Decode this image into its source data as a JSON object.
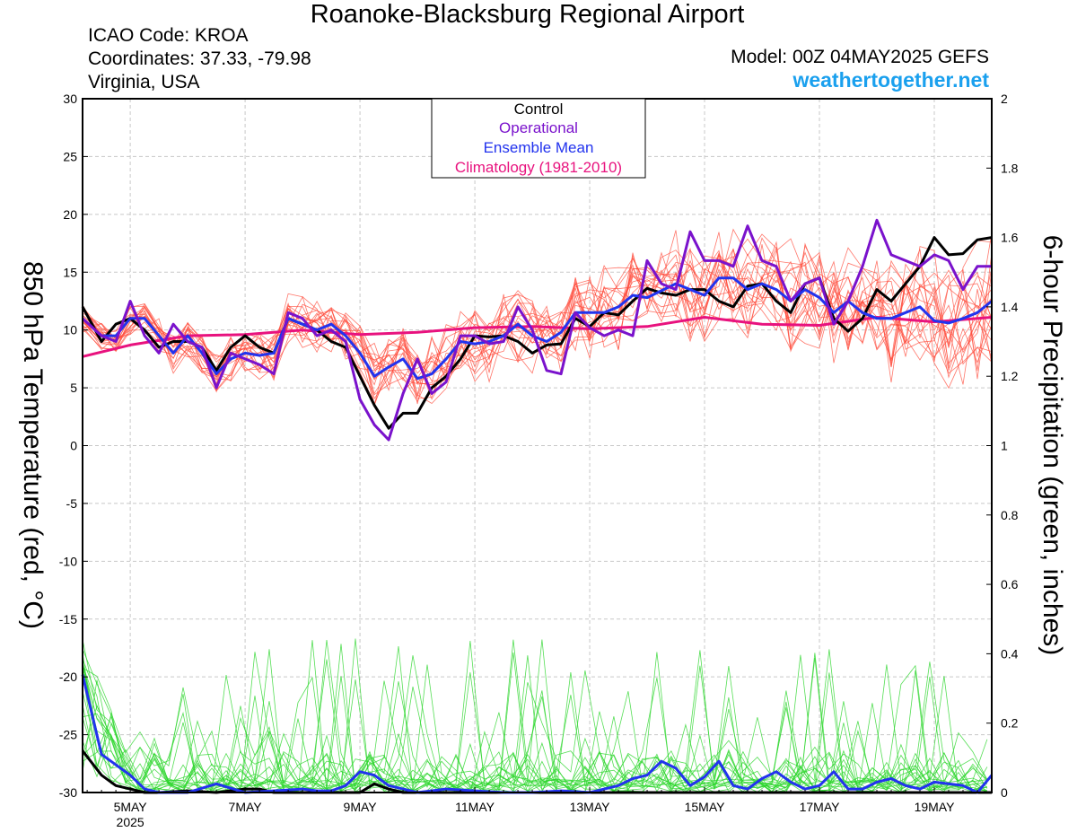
{
  "header": {
    "title": "Roanoke-Blacksburg Regional Airport",
    "icao": "ICAO Code: KROA",
    "coordinates": "Coordinates: 37.33, -79.98",
    "region": "Virginia, USA",
    "model": "Model: 00Z 04MAY2025 GEFS",
    "site": "weathertogether.net"
  },
  "colors": {
    "control": "#000000",
    "operational": "#7a12cc",
    "mean": "#2233ee",
    "climatology": "#e8127e",
    "members_temp": "#ff4a3a",
    "members_precip": "#2ad62a",
    "site": "#1aa0ee"
  },
  "chart_data": {
    "type": "line",
    "ylabel": "850 hPa Temperature (red, °C)",
    "y2label": "6-hour Precipitation (green, inches)",
    "ylim": [
      -30,
      30
    ],
    "y2lim": [
      0,
      2
    ],
    "yticks": [
      "30",
      "25",
      "20",
      "15",
      "10",
      "5",
      "0",
      "-5",
      "-10",
      "-15",
      "-20",
      "-25",
      "-30"
    ],
    "y2ticks": [
      "2",
      "1.8",
      "1.6",
      "1.4",
      "1.2",
      "1",
      "0.8",
      "0.6",
      "0.4",
      "0.2",
      "0"
    ],
    "xlim": [
      4.17,
      20.0
    ],
    "xticks": [
      {
        "pos": 5,
        "label": "5MAY",
        "sub": "2025"
      },
      {
        "pos": 7,
        "label": "7MAY",
        "sub": ""
      },
      {
        "pos": 9,
        "label": "9MAY",
        "sub": ""
      },
      {
        "pos": 11,
        "label": "11MAY",
        "sub": ""
      },
      {
        "pos": 13,
        "label": "13MAY",
        "sub": ""
      },
      {
        "pos": 15,
        "label": "15MAY",
        "sub": ""
      },
      {
        "pos": 17,
        "label": "17MAY",
        "sub": ""
      },
      {
        "pos": 19,
        "label": "19MAY",
        "sub": ""
      }
    ],
    "grid": true,
    "legend": {
      "position": "top-center",
      "entries": [
        {
          "label": "Control",
          "color": "#000000"
        },
        {
          "label": "Operational",
          "color": "#7a12cc"
        },
        {
          "label": "Ensemble Mean",
          "color": "#2233ee"
        },
        {
          "label": "Climatology (1981-2010)",
          "color": "#e8127e"
        }
      ]
    },
    "series": [
      {
        "name": "Control",
        "axis": "temp",
        "x": [
          4.17,
          4.5,
          4.75,
          5.0,
          5.25,
          5.5,
          5.75,
          6.0,
          6.25,
          6.5,
          6.75,
          7.0,
          7.25,
          7.5,
          7.75,
          8.0,
          8.25,
          8.5,
          8.75,
          9.0,
          9.25,
          9.5,
          9.75,
          10.0,
          10.25,
          10.5,
          10.75,
          11.0,
          11.25,
          11.5,
          11.75,
          12.0,
          12.25,
          12.5,
          12.75,
          13.0,
          13.25,
          13.5,
          13.75,
          14.0,
          14.25,
          14.5,
          14.75,
          15.0,
          15.25,
          15.5,
          15.75,
          16.0,
          16.25,
          16.5,
          16.75,
          17.0,
          17.25,
          17.5,
          17.75,
          18.0,
          18.25,
          18.5,
          18.75,
          19.0,
          19.25,
          19.5,
          19.75,
          20.0
        ],
        "values": [
          12,
          9,
          10.5,
          11,
          10,
          8.5,
          9,
          9,
          8.5,
          6.5,
          8.5,
          9.5,
          8.5,
          8,
          11,
          10.5,
          10,
          9,
          8.5,
          6,
          3.5,
          1.5,
          2.8,
          2.8,
          5,
          6,
          7.5,
          9.5,
          9.4,
          9.5,
          9,
          8,
          8.7,
          8.8,
          11,
          10.3,
          11.5,
          11.3,
          12.5,
          13.6,
          13.2,
          13,
          13.5,
          13.5,
          12.5,
          12,
          13.8,
          14,
          12.5,
          11.5,
          14,
          14.5,
          11,
          9.9,
          11,
          13.5,
          12.5,
          14,
          15.5,
          18,
          16.5,
          16.6,
          17.8,
          18
        ]
      },
      {
        "name": "Operational",
        "axis": "temp",
        "x": [
          4.17,
          4.5,
          4.75,
          5.0,
          5.25,
          5.5,
          5.75,
          6.0,
          6.25,
          6.5,
          6.75,
          7.0,
          7.25,
          7.5,
          7.75,
          8.0,
          8.25,
          8.5,
          8.75,
          9.0,
          9.25,
          9.5,
          9.75,
          10.0,
          10.25,
          10.5,
          10.75,
          11.0,
          11.25,
          11.5,
          11.75,
          12.0,
          12.25,
          12.5,
          12.75,
          13.0,
          13.25,
          13.5,
          13.75,
          14.0,
          14.25,
          14.5,
          14.75,
          15.0,
          15.25,
          15.5,
          15.75,
          16.0,
          16.25,
          16.5,
          16.75,
          17.0,
          17.25,
          17.5,
          17.75,
          18.0,
          18.25,
          18.5,
          18.75,
          19.0,
          19.25,
          19.5,
          19.75,
          20.0
        ],
        "values": [
          11,
          9.5,
          9,
          12.5,
          9.5,
          8,
          10.5,
          9,
          8.5,
          5,
          8,
          7.5,
          7,
          6.2,
          11.5,
          11,
          9.5,
          10,
          9,
          4,
          1.8,
          0.5,
          4.5,
          7.5,
          4.5,
          5.5,
          9.5,
          9.5,
          8.8,
          9,
          12,
          10,
          6.5,
          6.2,
          11.5,
          10.2,
          9.5,
          10,
          9.5,
          16,
          14,
          13.5,
          18.5,
          16,
          16,
          15.5,
          19,
          16,
          15.5,
          12.5,
          14,
          14.5,
          10.5,
          12.5,
          15.5,
          19.5,
          16.5,
          16,
          15.5,
          16.5,
          16,
          13.5,
          15.5,
          15.5
        ]
      },
      {
        "name": "Ensemble Mean",
        "axis": "temp",
        "x": [
          4.17,
          4.5,
          4.75,
          5.0,
          5.25,
          5.5,
          5.75,
          6.0,
          6.25,
          6.5,
          6.75,
          7.0,
          7.25,
          7.5,
          7.75,
          8.0,
          8.25,
          8.5,
          8.75,
          9.0,
          9.25,
          9.5,
          9.75,
          10.0,
          10.25,
          10.5,
          10.75,
          11.0,
          11.25,
          11.5,
          11.75,
          12.0,
          12.25,
          12.5,
          12.75,
          13.0,
          13.25,
          13.5,
          13.75,
          14.0,
          14.25,
          14.5,
          14.75,
          15.0,
          15.25,
          15.5,
          15.75,
          16.0,
          16.25,
          16.5,
          16.75,
          17.0,
          17.25,
          17.5,
          17.75,
          18.0,
          18.25,
          18.5,
          18.75,
          19.0,
          19.25,
          19.5,
          19.75,
          20.0
        ],
        "values": [
          11,
          9.5,
          9.5,
          11,
          11,
          9.5,
          8,
          9.5,
          8,
          6.2,
          7.5,
          8,
          7.8,
          8,
          11,
          10.5,
          10,
          10.5,
          9.5,
          8,
          6,
          6.8,
          7.5,
          5.8,
          6.2,
          7.5,
          9,
          8.8,
          9,
          9.5,
          10.5,
          9.5,
          9,
          9.8,
          11.5,
          11.5,
          11.5,
          12,
          13,
          12.8,
          13.4,
          14,
          13.5,
          13,
          14.5,
          14.5,
          13.5,
          14,
          13.5,
          12.5,
          13.5,
          12.8,
          11.5,
          12.5,
          11.5,
          11,
          11,
          11.5,
          12,
          10.8,
          10.6,
          11,
          11.5,
          12.5
        ]
      },
      {
        "name": "Climatology (1981-2010)",
        "axis": "temp",
        "x": [
          4.17,
          5.0,
          6.0,
          7.0,
          8.0,
          9.0,
          10.0,
          11.0,
          12.0,
          13.0,
          14.0,
          15.0,
          16.0,
          17.0,
          18.0,
          19.0,
          20.0
        ],
        "values": [
          7.7,
          8.7,
          9.5,
          9.6,
          10,
          9.6,
          9.8,
          10.2,
          10.3,
          10.1,
          10.3,
          11.1,
          10.5,
          10.4,
          11.1,
          10.7,
          11.1
        ]
      },
      {
        "name": "Control",
        "axis": "precip",
        "x": [
          4.17,
          4.5,
          4.75,
          5.0,
          5.25,
          5.5,
          6.0,
          6.5,
          7.0,
          7.25,
          7.5,
          8.0,
          8.5,
          9.0,
          9.25,
          9.5,
          9.75,
          10.0,
          11.0,
          12.0,
          13.0,
          14.0,
          15.0,
          16.0,
          17.0,
          18.0,
          19.0,
          20.0
        ],
        "values": [
          0.12,
          0.05,
          0.02,
          0.01,
          0,
          0,
          0.005,
          0,
          0.01,
          0.01,
          0,
          0,
          0,
          0,
          0.025,
          0.01,
          0,
          0,
          0,
          0,
          0,
          0,
          0,
          0,
          0,
          0,
          0,
          0
        ]
      },
      {
        "name": "Ensemble Mean",
        "axis": "precip",
        "x": [
          4.17,
          4.5,
          4.75,
          5.0,
          5.25,
          5.5,
          6.0,
          6.5,
          7.0,
          7.5,
          8.0,
          8.25,
          8.5,
          8.75,
          9.0,
          9.25,
          9.5,
          9.75,
          10.0,
          10.5,
          11.0,
          11.5,
          12.0,
          12.5,
          13.0,
          13.5,
          13.75,
          14.0,
          14.25,
          14.5,
          14.75,
          15.0,
          15.25,
          15.5,
          15.75,
          16.0,
          16.25,
          16.5,
          16.75,
          17.0,
          17.25,
          17.5,
          17.75,
          18.0,
          18.25,
          18.5,
          18.75,
          19.0,
          19.5,
          19.75,
          20.0
        ],
        "values": [
          0.34,
          0.11,
          0.08,
          0.05,
          0.01,
          0,
          0,
          0.025,
          0,
          0.005,
          0.01,
          0.005,
          0.005,
          0.02,
          0.06,
          0.05,
          0.02,
          0.01,
          0,
          0.01,
          0.005,
          0,
          0,
          0.005,
          0,
          0.02,
          0.04,
          0.05,
          0.09,
          0.07,
          0.02,
          0.045,
          0.09,
          0.02,
          0.01,
          0.04,
          0.06,
          0.03,
          0.01,
          0.02,
          0.06,
          0.01,
          0.01,
          0.03,
          0.04,
          0.02,
          0.01,
          0.03,
          0.02,
          0,
          0.05
        ]
      }
    ]
  }
}
